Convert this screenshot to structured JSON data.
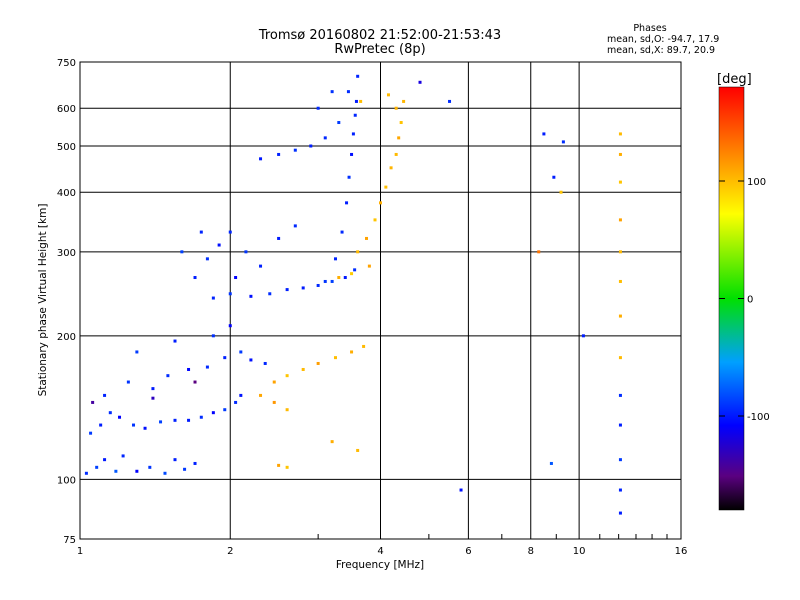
{
  "chart_data": {
    "type": "scatter",
    "title": "Tromsø 20160802 21:52:00-21:53:43",
    "subtitle": "RwPretec (8p)",
    "xlabel": "Frequency [MHz]",
    "ylabel": "Stationary phase Virtual Height [km]",
    "x_scale": "log",
    "y_scale": "log",
    "xlim": [
      1,
      16
    ],
    "ylim": [
      75,
      750
    ],
    "x_ticks": [
      1,
      2,
      4,
      6,
      8,
      10,
      16
    ],
    "y_ticks": [
      75,
      100,
      200,
      300,
      400,
      500,
      600,
      750
    ],
    "grid": true,
    "stats": {
      "heading": "Phases",
      "line1": "mean, sd,O: -94.7, 17.9",
      "line2": "mean, sd,X:  89.7, 20.9"
    },
    "colorbar": {
      "label": "[deg]",
      "ticks": [
        100,
        0,
        -100
      ],
      "range": [
        -180,
        180
      ],
      "colormap": "rainbow"
    },
    "series": [
      {
        "points": [
          [
            1.03,
            103,
            -95
          ],
          [
            1.08,
            106,
            -88
          ],
          [
            1.12,
            110,
            -102
          ],
          [
            1.18,
            104,
            -80
          ],
          [
            1.22,
            112,
            -97
          ],
          [
            1.3,
            104,
            -110
          ],
          [
            1.38,
            106,
            -92
          ],
          [
            1.48,
            103,
            -85
          ],
          [
            1.55,
            110,
            -100
          ],
          [
            1.62,
            105,
            -91
          ],
          [
            1.7,
            108,
            -99
          ],
          [
            1.05,
            125,
            -90
          ],
          [
            1.1,
            130,
            -100
          ],
          [
            1.15,
            138,
            -95
          ],
          [
            1.2,
            135,
            -110
          ],
          [
            1.28,
            130,
            -92
          ],
          [
            1.35,
            128,
            -105
          ],
          [
            1.45,
            132,
            -88
          ],
          [
            1.55,
            133,
            -99
          ],
          [
            1.65,
            133,
            -101
          ],
          [
            1.75,
            135,
            -95
          ],
          [
            1.85,
            138,
            -110
          ],
          [
            1.95,
            140,
            -90
          ],
          [
            2.05,
            145,
            -96
          ],
          [
            2.1,
            150,
            -103
          ],
          [
            1.12,
            150,
            -98
          ],
          [
            1.25,
            160,
            -92
          ],
          [
            1.4,
            155,
            -101
          ],
          [
            1.5,
            165,
            -95
          ],
          [
            1.65,
            170,
            -108
          ],
          [
            1.8,
            172,
            -96
          ],
          [
            1.95,
            180,
            -99
          ],
          [
            2.1,
            185,
            -90
          ],
          [
            2.2,
            178,
            -105
          ],
          [
            2.35,
            175,
            -97
          ],
          [
            1.3,
            185,
            -90
          ],
          [
            1.55,
            195,
            -100
          ],
          [
            1.85,
            200,
            -94
          ],
          [
            2.0,
            210,
            -110
          ],
          [
            1.06,
            145,
            -140
          ],
          [
            1.4,
            148,
            -130
          ],
          [
            1.7,
            160,
            -150
          ]
        ],
        "name": ""
      },
      {
        "points": [
          [
            1.85,
            240,
            -98
          ],
          [
            2.0,
            245,
            -92
          ],
          [
            2.2,
            242,
            -105
          ],
          [
            2.4,
            245,
            -95
          ],
          [
            2.6,
            250,
            -99
          ],
          [
            2.8,
            252,
            -101
          ],
          [
            3.0,
            255,
            -96
          ],
          [
            3.2,
            260,
            -88
          ],
          [
            3.4,
            265,
            -102
          ],
          [
            3.55,
            275,
            -95
          ],
          [
            1.7,
            265,
            -100
          ],
          [
            1.8,
            290,
            -94
          ],
          [
            1.9,
            310,
            -105
          ],
          [
            2.0,
            330,
            -97
          ],
          [
            2.15,
            300,
            -92
          ],
          [
            2.3,
            280,
            -99
          ],
          [
            2.5,
            320,
            -101
          ],
          [
            2.7,
            340,
            -96
          ],
          [
            1.6,
            300,
            -88
          ],
          [
            1.75,
            330,
            -98
          ],
          [
            2.05,
            265,
            -110
          ]
        ],
        "name": ""
      },
      {
        "points": [
          [
            3.1,
            260,
            -92
          ],
          [
            3.25,
            290,
            -98
          ],
          [
            3.35,
            330,
            -96
          ],
          [
            3.42,
            380,
            -100
          ],
          [
            3.46,
            430,
            -94
          ],
          [
            3.5,
            480,
            -105
          ],
          [
            3.53,
            530,
            -99
          ],
          [
            3.56,
            580,
            -97
          ],
          [
            3.58,
            620,
            -101
          ],
          [
            3.45,
            650,
            -95
          ],
          [
            3.3,
            560,
            -90
          ],
          [
            3.1,
            520,
            -97
          ],
          [
            2.9,
            500,
            -100
          ],
          [
            2.7,
            490,
            -94
          ],
          [
            2.5,
            480,
            -99
          ],
          [
            2.3,
            470,
            -102
          ],
          [
            3.0,
            600,
            -96
          ],
          [
            3.2,
            650,
            -93
          ],
          [
            3.6,
            700,
            -98
          ]
        ],
        "name": ""
      },
      {
        "points": [
          [
            3.6,
            300,
            100
          ],
          [
            3.75,
            320,
            110
          ],
          [
            3.9,
            350,
            95
          ],
          [
            4.0,
            380,
            105
          ],
          [
            4.1,
            410,
            98
          ],
          [
            4.2,
            450,
            102
          ],
          [
            4.3,
            480,
            100
          ],
          [
            4.35,
            520,
            108
          ],
          [
            4.4,
            560,
            96
          ],
          [
            4.3,
            600,
            103
          ],
          [
            3.8,
            280,
            110
          ],
          [
            3.5,
            270,
            92
          ],
          [
            3.3,
            265,
            105
          ],
          [
            3.65,
            620,
            98
          ],
          [
            4.15,
            640,
            100
          ],
          [
            4.45,
            620,
            101
          ]
        ],
        "name": ""
      },
      {
        "points": [
          [
            2.45,
            160,
            110
          ],
          [
            2.6,
            165,
            95
          ],
          [
            2.8,
            170,
            100
          ],
          [
            3.0,
            175,
            112
          ],
          [
            3.25,
            180,
            98
          ],
          [
            3.5,
            185,
            105
          ],
          [
            3.7,
            190,
            100
          ],
          [
            2.3,
            150,
            108
          ],
          [
            2.45,
            145,
            115
          ],
          [
            2.6,
            140,
            100
          ],
          [
            2.5,
            107,
            110
          ],
          [
            2.6,
            106,
            95
          ],
          [
            3.2,
            120,
            105
          ],
          [
            3.6,
            115,
            100
          ]
        ],
        "name": ""
      },
      {
        "points": [
          [
            12.1,
            530,
            100
          ],
          [
            12.1,
            480,
            105
          ],
          [
            12.1,
            420,
            95
          ],
          [
            12.1,
            350,
            110
          ],
          [
            12.1,
            300,
            100
          ],
          [
            12.1,
            260,
            98
          ],
          [
            12.1,
            220,
            105
          ],
          [
            12.1,
            180,
            100
          ],
          [
            12.1,
            150,
            -95
          ],
          [
            12.1,
            130,
            -100
          ],
          [
            12.1,
            110,
            -90
          ],
          [
            12.1,
            95,
            -98
          ],
          [
            12.1,
            85,
            -100
          ],
          [
            8.5,
            530,
            -100
          ],
          [
            9.3,
            510,
            -95
          ],
          [
            8.9,
            430,
            -100
          ],
          [
            8.3,
            300,
            130
          ],
          [
            9.2,
            400,
            95
          ],
          [
            10.2,
            200,
            -100
          ],
          [
            8.8,
            108,
            -80
          ],
          [
            5.8,
            95,
            -105
          ],
          [
            4.8,
            680,
            -120
          ],
          [
            5.5,
            620,
            -95
          ]
        ],
        "name": ""
      }
    ]
  }
}
